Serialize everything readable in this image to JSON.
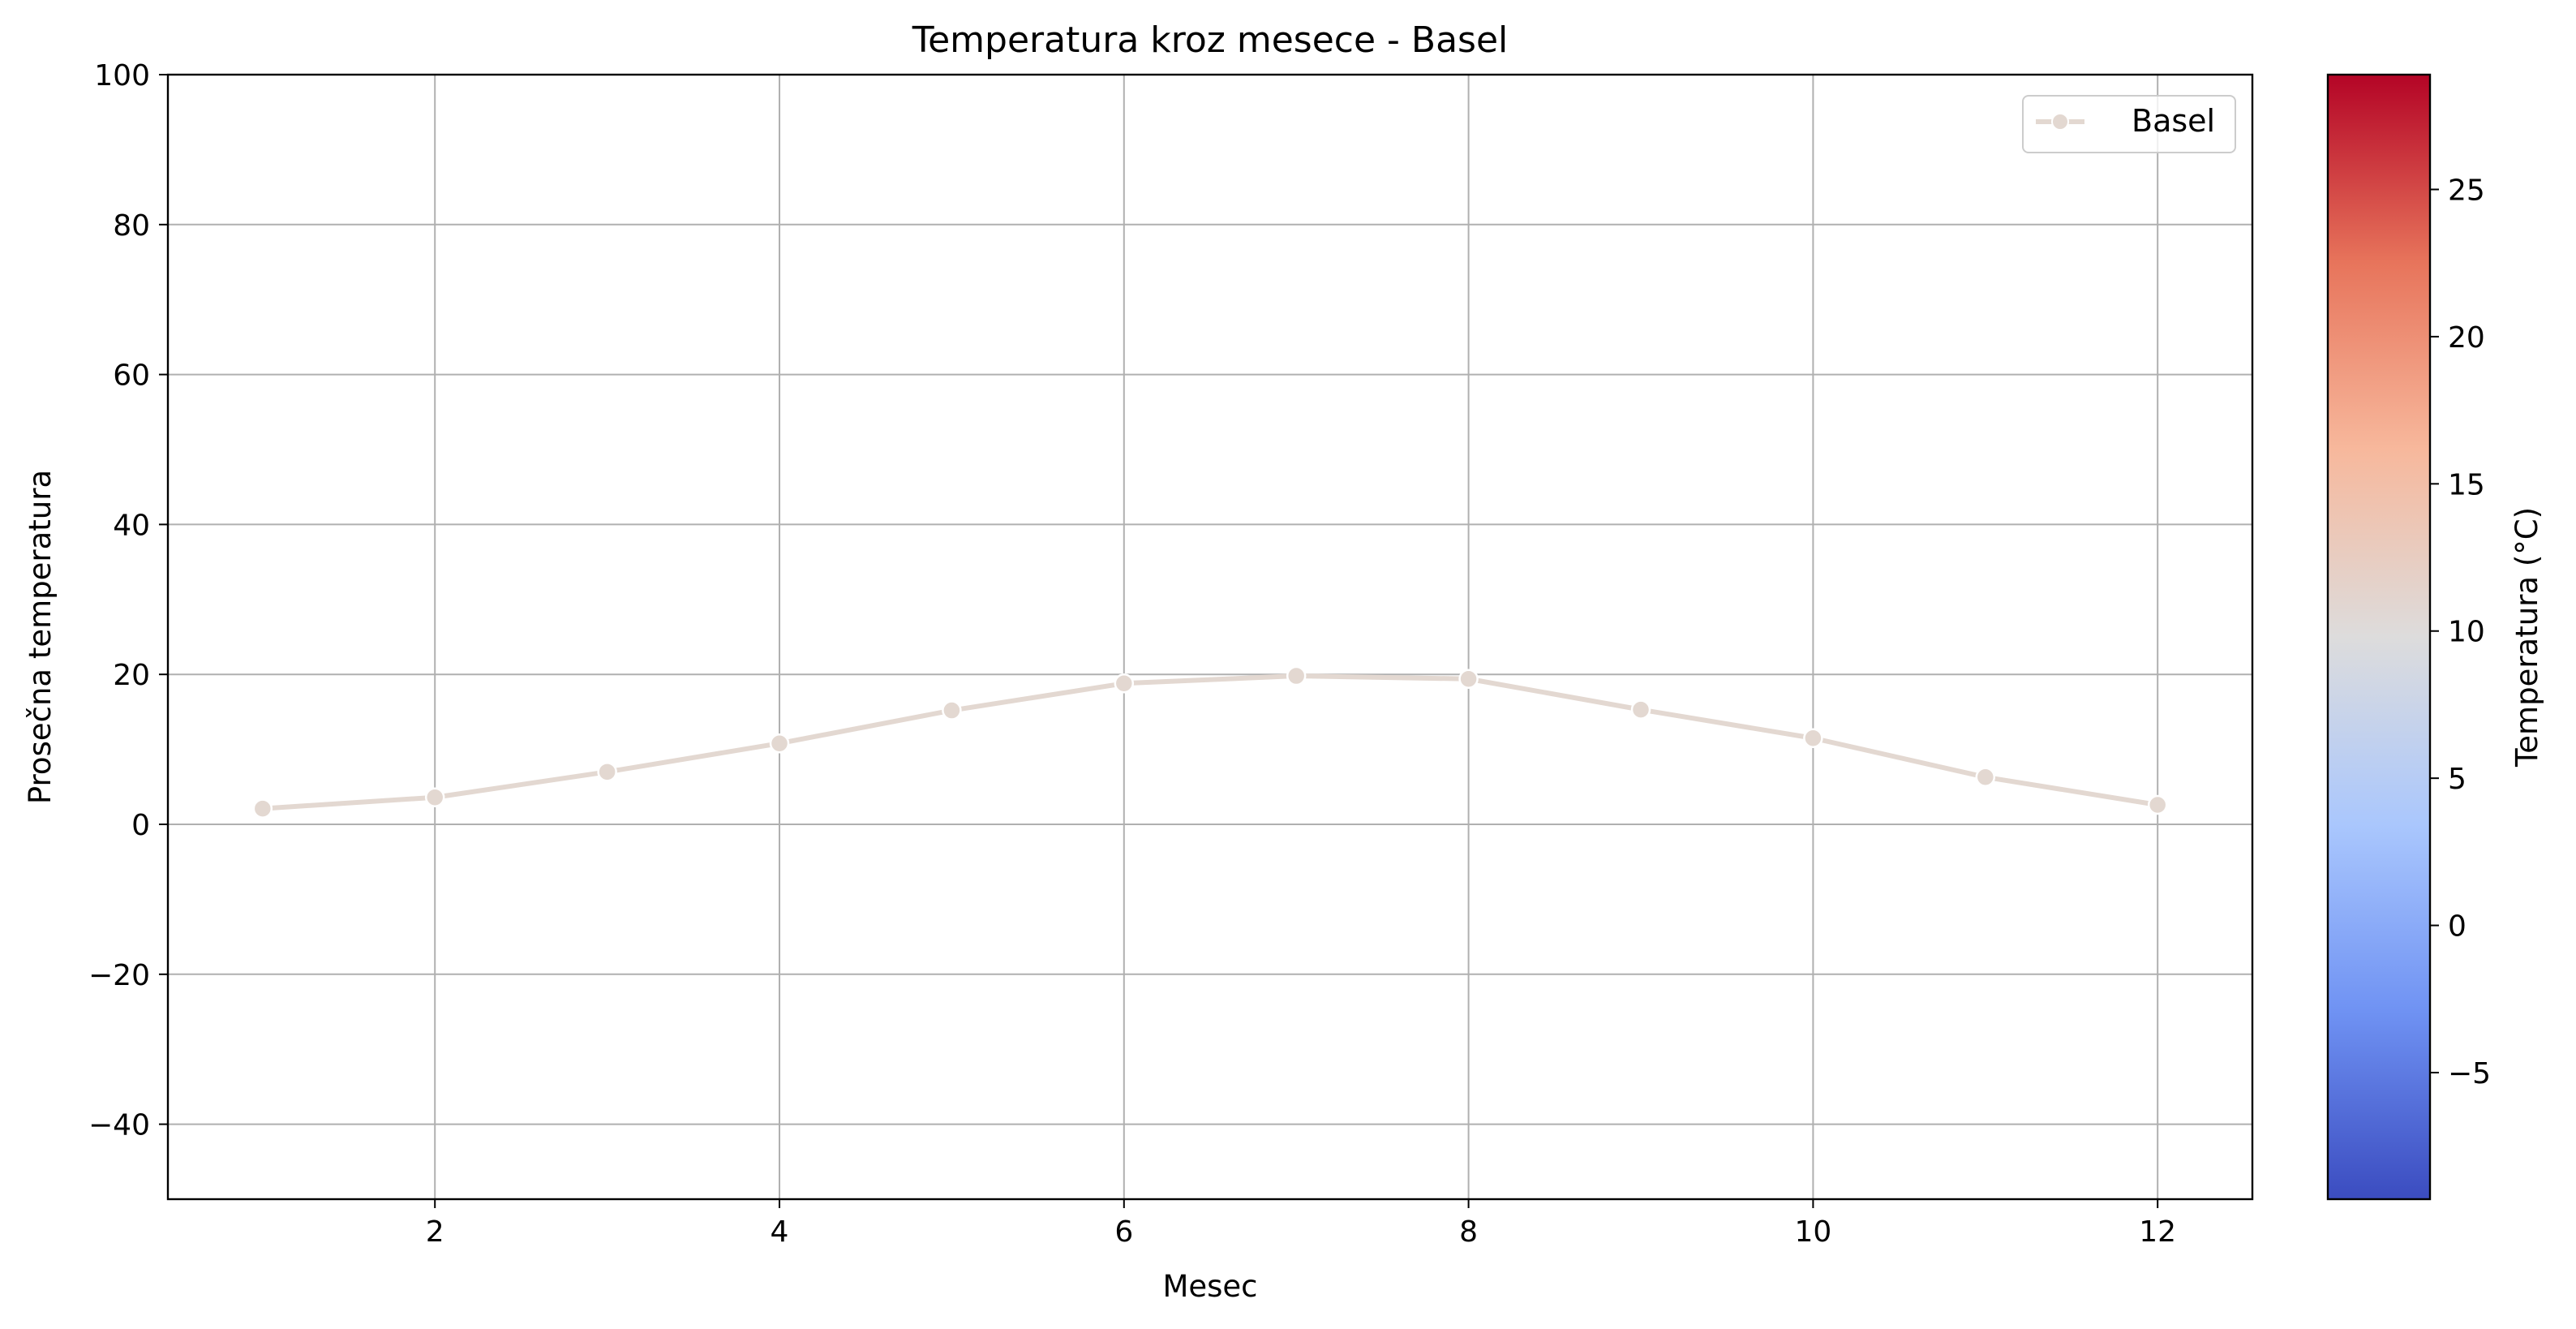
{
  "chart_data": {
    "type": "line",
    "title": "Temperatura kroz mesece - Basel",
    "xlabel": "Mesec",
    "ylabel": "Prosečna temperatura",
    "xlim": [
      0.45,
      12.55
    ],
    "ylim": [
      -50,
      100
    ],
    "xticks": [
      2,
      4,
      6,
      8,
      10,
      12
    ],
    "xtick_labels": [
      "2",
      "4",
      "6",
      "8",
      "10",
      "12"
    ],
    "yticks": [
      -40,
      -20,
      0,
      20,
      40,
      60,
      80,
      100
    ],
    "ytick_labels": [
      "−40",
      "−20",
      "0",
      "20",
      "40",
      "60",
      "80",
      "100"
    ],
    "grid": true,
    "legend_position": "top-right",
    "series": [
      {
        "name": "Basel",
        "color": "#e3d8d1",
        "x": [
          1,
          2,
          3,
          4,
          5,
          6,
          7,
          8,
          9,
          10,
          11,
          12
        ],
        "y": [
          2.1,
          3.6,
          7.0,
          10.8,
          15.2,
          18.8,
          19.8,
          19.4,
          15.3,
          11.5,
          6.3,
          2.6
        ]
      }
    ],
    "colorbar": {
      "label": "Temperatura (°C)",
      "colormap": "coolwarm",
      "range": [
        -9.3,
        28.9
      ],
      "ticks": [
        -5,
        0,
        5,
        10,
        15,
        20,
        25
      ],
      "tick_labels": [
        "−5",
        "0",
        "5",
        "10",
        "15",
        "20",
        "25"
      ],
      "colors": [
        "#3b4cc0",
        "#6f92f3",
        "#aac7fd",
        "#dddcdc",
        "#f7b89c",
        "#e7745b",
        "#b40426"
      ]
    }
  }
}
